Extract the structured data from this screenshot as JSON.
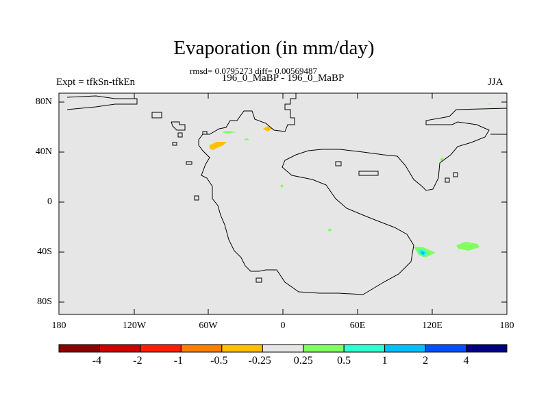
{
  "title": "Evaporation (in mm/day)",
  "stats_line": "rmsd= 0.0795273 diff= 0.00569487",
  "periods_line": "196_0_MaBP - 196_0_MaBP",
  "experiment_label": "Expt = tfkSn-tfkEn",
  "season_label": "JJA",
  "map": {
    "background_color": "#e6e6e6",
    "y_tick_labels": [
      "80N",
      "40N",
      "0",
      "40S",
      "80S"
    ],
    "x_tick_labels": [
      "180",
      "120W",
      "60W",
      "0",
      "60E",
      "120E",
      "180"
    ]
  },
  "colorbar": {
    "colors": [
      "#8b0000",
      "#cd0000",
      "#ff1e00",
      "#ff7f00",
      "#ffc000",
      "#e6e6e6",
      "#80ff60",
      "#30ffd0",
      "#00c0ff",
      "#0050ff",
      "#000080"
    ],
    "labels": [
      "-4",
      "-2",
      "-1",
      "-0.5",
      "-0.25",
      "0.25",
      "0.5",
      "1",
      "2",
      "4"
    ]
  },
  "anomaly_colors": {
    "negative_small": "#ffc000",
    "positive_small": "#80ff60",
    "positive_medium": "#30ffd0",
    "positive_large": "#00c0ff"
  }
}
